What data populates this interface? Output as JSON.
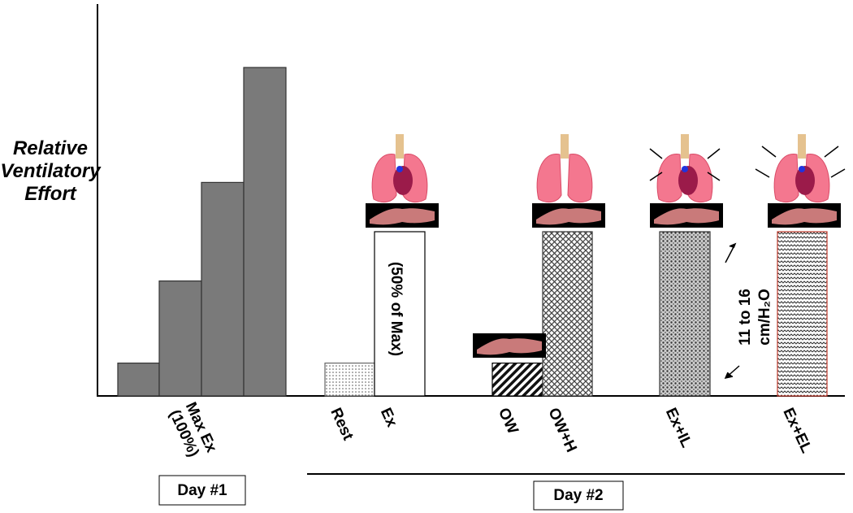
{
  "chart_data": {
    "type": "bar",
    "ylabel": [
      "Relative",
      "Ventilatory",
      "Effort"
    ],
    "categories": [
      null,
      null,
      null,
      null,
      "Rest",
      "Ex",
      "OW",
      "OW+H",
      "Ex+IL",
      "Ex+EL"
    ],
    "values": [
      10,
      35,
      65,
      100,
      10,
      50,
      10,
      50,
      50,
      50
    ],
    "ylim": [
      0,
      100
    ],
    "max_label": [
      "Max Ex",
      "(100%)"
    ],
    "ex_annotation": "(50% of Max)",
    "load_annotation": [
      "11 to 16",
      "cm/H₂O"
    ],
    "groups": [
      "Day #1",
      "Day #2"
    ],
    "color": "#7a7a7a"
  }
}
